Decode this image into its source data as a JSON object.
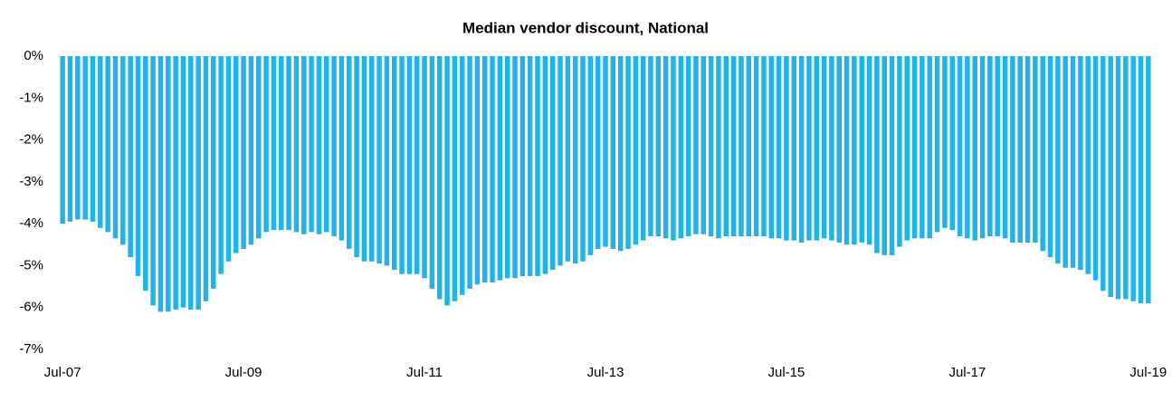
{
  "chart_data": {
    "type": "bar",
    "title": "Median vendor discount, National",
    "categories": [
      "Jul-07",
      null,
      null,
      null,
      null,
      null,
      null,
      null,
      null,
      null,
      null,
      null,
      null,
      null,
      null,
      null,
      null,
      null,
      null,
      null,
      null,
      null,
      null,
      null,
      "Jul-09",
      null,
      null,
      null,
      null,
      null,
      null,
      null,
      null,
      null,
      null,
      null,
      null,
      null,
      null,
      null,
      null,
      null,
      null,
      null,
      null,
      null,
      null,
      null,
      "Jul-11",
      null,
      null,
      null,
      null,
      null,
      null,
      null,
      null,
      null,
      null,
      null,
      null,
      null,
      null,
      null,
      null,
      null,
      null,
      null,
      null,
      null,
      null,
      null,
      "Jul-13",
      null,
      null,
      null,
      null,
      null,
      null,
      null,
      null,
      null,
      null,
      null,
      null,
      null,
      null,
      null,
      null,
      null,
      null,
      null,
      null,
      null,
      null,
      null,
      "Jul-15",
      null,
      null,
      null,
      null,
      null,
      null,
      null,
      null,
      null,
      null,
      null,
      null,
      null,
      null,
      null,
      null,
      null,
      null,
      null,
      null,
      null,
      null,
      null,
      "Jul-17",
      null,
      null,
      null,
      null,
      null,
      null,
      null,
      null,
      null,
      null,
      null,
      null,
      null,
      null,
      null,
      null,
      null,
      null,
      null,
      null,
      null,
      null,
      null,
      "Jul-19"
    ],
    "values": [
      -4.0,
      -3.95,
      -3.9,
      -3.9,
      -3.95,
      -4.1,
      -4.2,
      -4.35,
      -4.5,
      -4.8,
      -5.25,
      -5.6,
      -5.95,
      -6.1,
      -6.1,
      -6.05,
      -6.0,
      -6.05,
      -6.05,
      -5.85,
      -5.55,
      -5.2,
      -4.9,
      -4.7,
      -4.6,
      -4.5,
      -4.35,
      -4.2,
      -4.15,
      -4.15,
      -4.15,
      -4.2,
      -4.25,
      -4.2,
      -4.25,
      -4.2,
      -4.3,
      -4.4,
      -4.6,
      -4.8,
      -4.9,
      -4.9,
      -4.95,
      -5.0,
      -5.1,
      -5.2,
      -5.2,
      -5.2,
      -5.3,
      -5.55,
      -5.8,
      -5.95,
      -5.85,
      -5.7,
      -5.55,
      -5.45,
      -5.4,
      -5.4,
      -5.35,
      -5.3,
      -5.3,
      -5.25,
      -5.25,
      -5.25,
      -5.2,
      -5.1,
      -5.0,
      -4.9,
      -4.95,
      -4.9,
      -4.75,
      -4.6,
      -4.55,
      -4.6,
      -4.65,
      -4.6,
      -4.5,
      -4.4,
      -4.3,
      -4.3,
      -4.35,
      -4.4,
      -4.35,
      -4.3,
      -4.25,
      -4.25,
      -4.3,
      -4.35,
      -4.3,
      -4.3,
      -4.3,
      -4.3,
      -4.3,
      -4.3,
      -4.35,
      -4.35,
      -4.4,
      -4.4,
      -4.45,
      -4.4,
      -4.4,
      -4.35,
      -4.4,
      -4.45,
      -4.5,
      -4.5,
      -4.45,
      -4.5,
      -4.7,
      -4.75,
      -4.75,
      -4.55,
      -4.4,
      -4.35,
      -4.35,
      -4.35,
      -4.2,
      -4.1,
      -4.15,
      -4.3,
      -4.35,
      -4.4,
      -4.35,
      -4.3,
      -4.3,
      -4.35,
      -4.45,
      -4.45,
      -4.45,
      -4.45,
      -4.65,
      -4.8,
      -4.95,
      -5.05,
      -5.05,
      -5.1,
      -5.2,
      -5.35,
      -5.6,
      -5.75,
      -5.8,
      -5.8,
      -5.85,
      -5.9,
      -5.9
    ],
    "color": "#1fb4e8",
    "ylim": [
      -7,
      0
    ],
    "yticks": [
      {
        "value": 0,
        "label": "0%"
      },
      {
        "value": -1,
        "label": "-1%"
      },
      {
        "value": -2,
        "label": "-2%"
      },
      {
        "value": -3,
        "label": "-3%"
      },
      {
        "value": -4,
        "label": "-4%"
      },
      {
        "value": -5,
        "label": "-5%"
      },
      {
        "value": -6,
        "label": "-6%"
      },
      {
        "value": -7,
        "label": "-7%"
      }
    ],
    "grid": false
  }
}
